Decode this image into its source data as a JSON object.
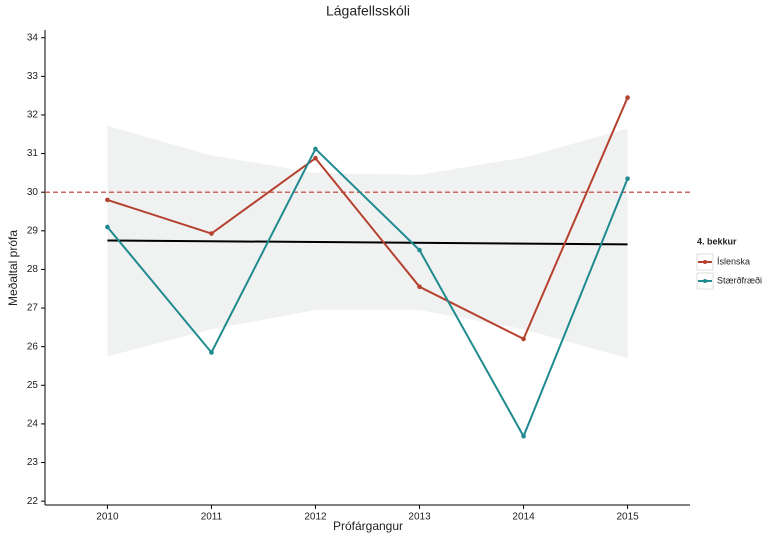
{
  "chart_data": {
    "type": "line",
    "title": "Lágafellsskóli",
    "x_label": "Prófárgangur",
    "y_label": "Meðaltal prófa",
    "x": [
      2010,
      2011,
      2012,
      2013,
      2014,
      2015
    ],
    "series": [
      {
        "name": "Íslenska",
        "color": "#b5412f",
        "values": [
          29.8,
          28.93,
          30.88,
          27.55,
          26.2,
          32.45
        ]
      },
      {
        "name": "Stærðfræði",
        "color": "#1f8a8f",
        "values": [
          29.1,
          25.85,
          31.12,
          28.5,
          23.68,
          30.35
        ]
      }
    ],
    "trend": {
      "x": [
        2010,
        2015
      ],
      "values": [
        28.75,
        28.65
      ],
      "color": "#000000"
    },
    "band": {
      "x": [
        2010,
        2011,
        2012,
        2013,
        2014,
        2015
      ],
      "upper": [
        31.72,
        30.95,
        30.5,
        30.45,
        30.9,
        31.65
      ],
      "lower": [
        25.75,
        26.45,
        26.95,
        26.95,
        26.45,
        25.7
      ],
      "color": "#f0f2f1"
    },
    "reference_line": {
      "value": 30,
      "color": "#c0392b"
    },
    "legend_title": "4. bekkur",
    "legend_position": "right",
    "xlim": [
      2009.4,
      2015.6
    ],
    "xticks": [
      2010,
      2011,
      2012,
      2013,
      2014,
      2015
    ],
    "ylim": [
      21.9,
      34.2
    ],
    "yticks": [
      22,
      23,
      24,
      25,
      26,
      27,
      28,
      29,
      30,
      31,
      32,
      33,
      34
    ]
  }
}
